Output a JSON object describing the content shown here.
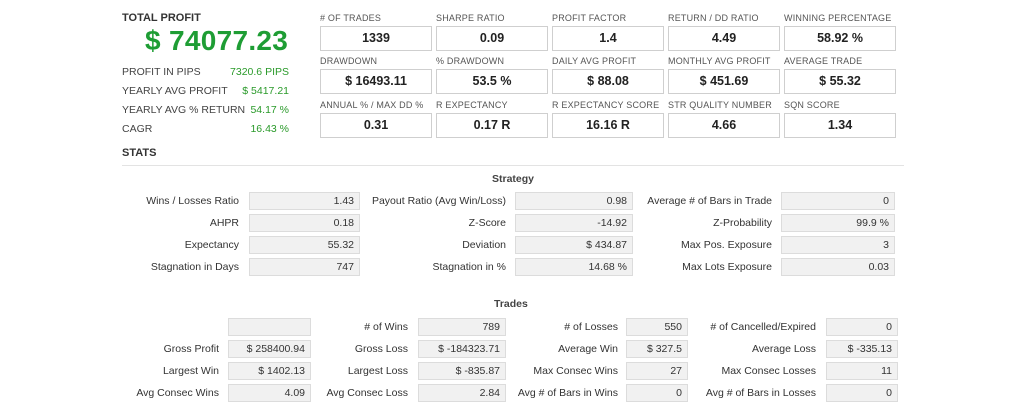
{
  "summary": {
    "total_profit_label": "TOTAL PROFIT",
    "total_profit_value": "$ 74077.23",
    "rows": [
      {
        "label": "PROFIT IN PIPS",
        "value": "7320.6 PIPS"
      },
      {
        "label": "YEARLY AVG PROFIT",
        "value": "$ 5417.21"
      },
      {
        "label": "YEARLY AVG % RETURN",
        "value": "54.17 %"
      },
      {
        "label": "CAGR",
        "value": "16.43 %"
      }
    ]
  },
  "metrics": [
    {
      "label": "# OF TRADES",
      "value": "1339"
    },
    {
      "label": "SHARPE RATIO",
      "value": "0.09"
    },
    {
      "label": "PROFIT FACTOR",
      "value": "1.4"
    },
    {
      "label": "RETURN / DD RATIO",
      "value": "4.49"
    },
    {
      "label": "WINNING PERCENTAGE",
      "value": "58.92 %"
    },
    {
      "label": "DRAWDOWN",
      "value": "$ 16493.11"
    },
    {
      "label": "% DRAWDOWN",
      "value": "53.5 %"
    },
    {
      "label": "DAILY AVG PROFIT",
      "value": "$ 88.08"
    },
    {
      "label": "MONTHLY AVG PROFIT",
      "value": "$ 451.69"
    },
    {
      "label": "AVERAGE TRADE",
      "value": "$ 55.32"
    },
    {
      "label": "ANNUAL % / MAX DD %",
      "value": "0.31"
    },
    {
      "label": "R EXPECTANCY",
      "value": "0.17 R"
    },
    {
      "label": "R EXPECTANCY SCORE",
      "value": "16.16 R"
    },
    {
      "label": "STR QUALITY NUMBER",
      "value": "4.66"
    },
    {
      "label": "SQN SCORE",
      "value": "1.34"
    }
  ],
  "stats_title": "STATS",
  "strategy": {
    "title": "Strategy",
    "rows": [
      [
        {
          "label": "Wins / Losses Ratio",
          "value": "1.43"
        },
        {
          "label": "Payout Ratio (Avg Win/Loss)",
          "value": "0.98"
        },
        {
          "label": "Average # of Bars in Trade",
          "value": "0"
        }
      ],
      [
        {
          "label": "AHPR",
          "value": "0.18"
        },
        {
          "label": "Z-Score",
          "value": "-14.92"
        },
        {
          "label": "Z-Probability",
          "value": "99.9 %"
        }
      ],
      [
        {
          "label": "Expectancy",
          "value": "55.32"
        },
        {
          "label": "Deviation",
          "value": "$ 434.87"
        },
        {
          "label": "Max Pos. Exposure",
          "value": "3"
        }
      ],
      [
        {
          "label": "Stagnation in Days",
          "value": "747"
        },
        {
          "label": "Stagnation in %",
          "value": "14.68 %"
        },
        {
          "label": "Max Lots Exposure",
          "value": "0.03"
        }
      ]
    ]
  },
  "trades": {
    "title": "Trades",
    "rows": [
      [
        {
          "label": "",
          "value": ""
        },
        {
          "label": "# of Wins",
          "value": "789"
        },
        {
          "label": "# of Losses",
          "value": "550"
        },
        {
          "label": "# of Cancelled/Expired",
          "value": "0"
        }
      ],
      [
        {
          "label": "Gross Profit",
          "value": "$ 258400.94"
        },
        {
          "label": "Gross Loss",
          "value": "$ -184323.71"
        },
        {
          "label": "Average Win",
          "value": "$ 327.5"
        },
        {
          "label": "Average Loss",
          "value": "$ -335.13"
        }
      ],
      [
        {
          "label": "Largest Win",
          "value": "$ 1402.13"
        },
        {
          "label": "Largest Loss",
          "value": "$ -835.87"
        },
        {
          "label": "Max Consec Wins",
          "value": "27"
        },
        {
          "label": "Max Consec Losses",
          "value": "11"
        }
      ],
      [
        {
          "label": "Avg Consec Wins",
          "value": "4.09"
        },
        {
          "label": "Avg Consec Loss",
          "value": "2.84"
        },
        {
          "label": "Avg # of Bars in Wins",
          "value": "0"
        },
        {
          "label": "Avg # of Bars in Losses",
          "value": "0"
        }
      ]
    ]
  }
}
